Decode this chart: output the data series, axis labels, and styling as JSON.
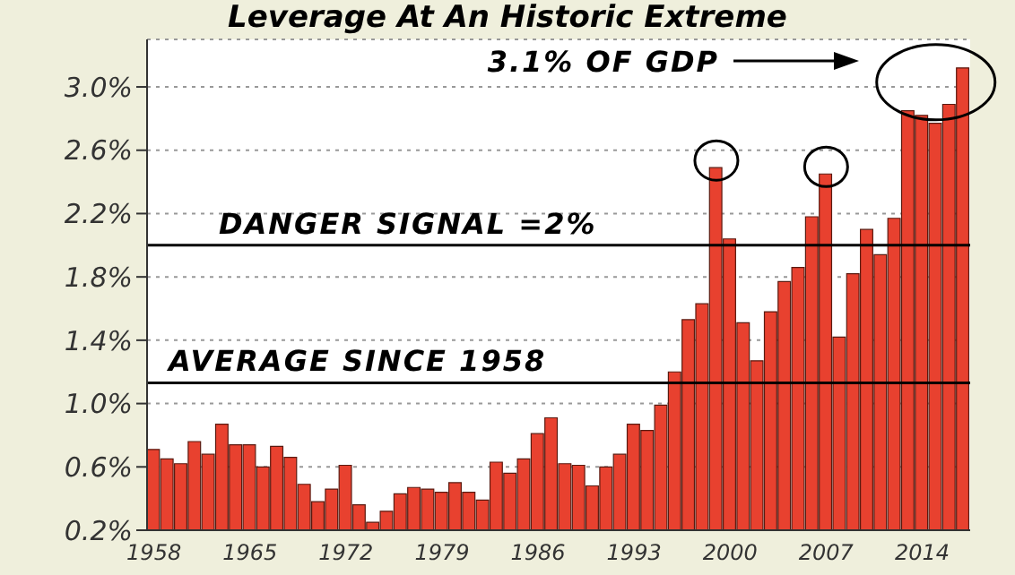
{
  "chart_data": {
    "type": "bar",
    "title": "Leverage At An Historic Extreme",
    "x": [
      1958,
      1959,
      1960,
      1961,
      1962,
      1963,
      1964,
      1965,
      1966,
      1967,
      1968,
      1969,
      1970,
      1971,
      1972,
      1973,
      1974,
      1975,
      1976,
      1977,
      1978,
      1979,
      1980,
      1981,
      1982,
      1983,
      1984,
      1985,
      1986,
      1987,
      1988,
      1989,
      1990,
      1991,
      1992,
      1993,
      1994,
      1995,
      1996,
      1997,
      1998,
      1999,
      2000,
      2001,
      2002,
      2003,
      2004,
      2005,
      2006,
      2007,
      2008,
      2009,
      2010,
      2011,
      2012,
      2013,
      2014,
      2015,
      2016,
      2017
    ],
    "values": [
      0.71,
      0.65,
      0.62,
      0.76,
      0.68,
      0.87,
      0.74,
      0.74,
      0.6,
      0.73,
      0.66,
      0.49,
      0.38,
      0.46,
      0.61,
      0.36,
      0.25,
      0.32,
      0.43,
      0.47,
      0.46,
      0.44,
      0.5,
      0.44,
      0.39,
      0.63,
      0.56,
      0.65,
      0.81,
      0.91,
      0.62,
      0.61,
      0.48,
      0.6,
      0.68,
      0.87,
      0.83,
      0.99,
      1.2,
      1.53,
      1.63,
      2.49,
      2.04,
      1.51,
      1.27,
      1.58,
      1.77,
      1.86,
      2.18,
      2.45,
      1.42,
      1.82,
      2.1,
      1.94,
      2.17,
      2.85,
      2.82,
      2.77,
      2.89,
      3.12
    ],
    "color": "#e8412f",
    "xlim": [
      1957.5,
      2017.5
    ],
    "xticks": [
      1958,
      1965,
      1972,
      1979,
      1986,
      1993,
      2000,
      2007,
      2014
    ],
    "ylim": [
      0.2,
      3.3
    ],
    "yticks": [
      {
        "value": 0.2,
        "label": "0.2%"
      },
      {
        "value": 0.6,
        "label": "0.6%"
      },
      {
        "value": 1.0,
        "label": "1.0%"
      },
      {
        "value": 1.4,
        "label": "1.4%"
      },
      {
        "value": 1.8,
        "label": "1.8%"
      },
      {
        "value": 2.2,
        "label": "2.2%"
      },
      {
        "value": 2.6,
        "label": "2.6%"
      },
      {
        "value": 3.0,
        "label": "3.0%"
      }
    ],
    "grid": "y",
    "ref_lines": [
      {
        "axis": "y",
        "value": 2.0,
        "label": "DANGER SIGNAL =2%",
        "color": "#000000"
      },
      {
        "axis": "y",
        "value": 1.13,
        "label": "AVERAGE SINCE 1958",
        "color": "#000000"
      }
    ],
    "annotations": [
      "3.1% OF GDP"
    ]
  }
}
